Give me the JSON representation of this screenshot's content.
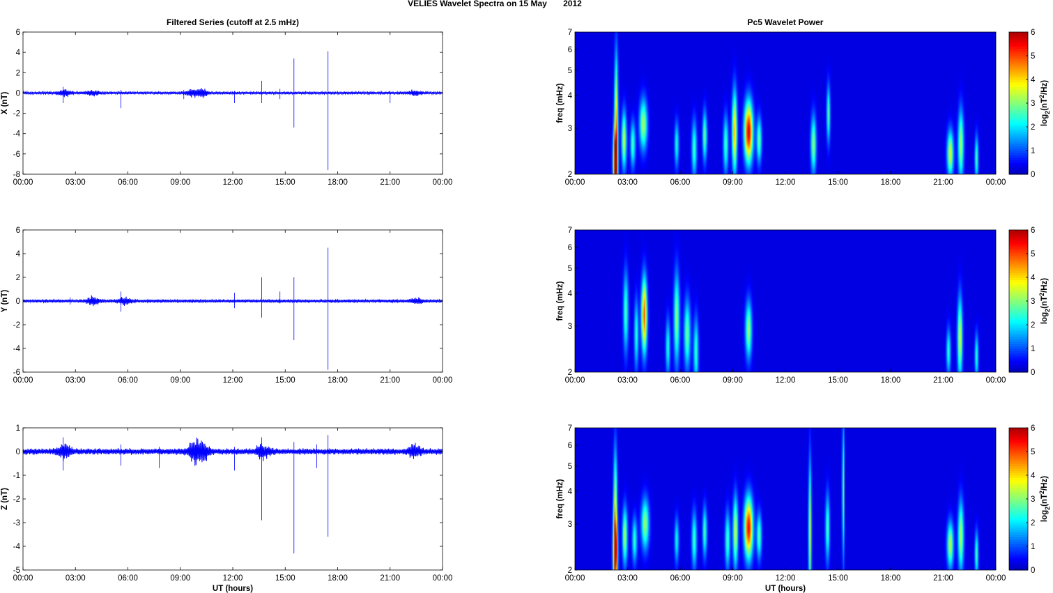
{
  "figure": {
    "suptitle": "VELIES Wavelet Spectra on 15 May       2012",
    "left_column_title": "Filtered Series (cutoff at 2.5 mHz)",
    "right_column_title": "Pc5 Wavelet Power",
    "colorbar_label_base": "log",
    "colorbar_label_sub": "2",
    "colorbar_label_mid": "(nT",
    "colorbar_label_sup": "2",
    "colorbar_label_end": "/Hz)"
  },
  "colors": {
    "series_line": "#0000ff",
    "background_power": "#00008f",
    "axes": "#000000"
  },
  "chart_data": [
    {
      "type": "line",
      "component": "X",
      "ylabel": "X (nT)",
      "xlabel": "",
      "xticks": [
        "00:00",
        "03:00",
        "06:00",
        "09:00",
        "12:00",
        "15:00",
        "18:00",
        "21:00",
        "00:00"
      ],
      "xlim_hours": [
        0,
        24
      ],
      "ylim": [
        -8,
        6
      ],
      "yticks": [
        -8,
        -6,
        -4,
        -2,
        0,
        2,
        4,
        6
      ],
      "baseline_amplitude": 0.12,
      "wave_packets": [
        {
          "center_hours": 2.4,
          "amplitude": 0.3
        },
        {
          "center_hours": 4.0,
          "amplitude": 0.2
        },
        {
          "center_hours": 9.6,
          "amplitude": 0.25
        },
        {
          "center_hours": 10.2,
          "amplitude": 0.35
        },
        {
          "center_hours": 22.4,
          "amplitude": 0.2
        }
      ],
      "spikes": [
        {
          "t_hours": 2.3,
          "min": -1.0,
          "max": 0.6
        },
        {
          "t_hours": 5.6,
          "min": -1.5,
          "max": 0.3
        },
        {
          "t_hours": 9.2,
          "min": -0.6,
          "max": 0.3
        },
        {
          "t_hours": 12.1,
          "min": -1.0,
          "max": 0.2
        },
        {
          "t_hours": 13.65,
          "min": -1.0,
          "max": 1.2
        },
        {
          "t_hours": 14.7,
          "min": -0.6,
          "max": 0.4
        },
        {
          "t_hours": 15.5,
          "min": -3.4,
          "max": 3.4
        },
        {
          "t_hours": 17.45,
          "min": -7.6,
          "max": 4.1
        },
        {
          "t_hours": 21.0,
          "min": -1.0,
          "max": 0.2
        }
      ]
    },
    {
      "type": "line",
      "component": "Y",
      "ylabel": "Y (nT)",
      "xlabel": "",
      "xticks": [
        "00:00",
        "03:00",
        "06:00",
        "09:00",
        "12:00",
        "15:00",
        "18:00",
        "21:00",
        "00:00"
      ],
      "xlim_hours": [
        0,
        24
      ],
      "ylim": [
        -6,
        6
      ],
      "yticks": [
        -6,
        -4,
        -2,
        0,
        2,
        4,
        6
      ],
      "baseline_amplitude": 0.12,
      "wave_packets": [
        {
          "center_hours": 4.0,
          "amplitude": 0.3
        },
        {
          "center_hours": 5.8,
          "amplitude": 0.25
        },
        {
          "center_hours": 22.5,
          "amplitude": 0.2
        }
      ],
      "spikes": [
        {
          "t_hours": 2.7,
          "min": -0.3,
          "max": 0.3
        },
        {
          "t_hours": 5.6,
          "min": -0.9,
          "max": 0.8
        },
        {
          "t_hours": 12.1,
          "min": -0.6,
          "max": 0.7
        },
        {
          "t_hours": 13.65,
          "min": -1.4,
          "max": 2.0
        },
        {
          "t_hours": 14.7,
          "min": -0.2,
          "max": 0.8
        },
        {
          "t_hours": 15.5,
          "min": -3.3,
          "max": 2.0
        },
        {
          "t_hours": 17.45,
          "min": -5.8,
          "max": 4.5
        }
      ]
    },
    {
      "type": "line",
      "component": "Z",
      "ylabel": "Z (nT)",
      "xlabel": "UT (hours)",
      "xticks": [
        "00:00",
        "03:00",
        "06:00",
        "09:00",
        "12:00",
        "15:00",
        "18:00",
        "21:00",
        "00:00"
      ],
      "xlim_hours": [
        0,
        24
      ],
      "ylim": [
        -5,
        1
      ],
      "yticks": [
        -5,
        -4,
        -3,
        -2,
        -1,
        0,
        1
      ],
      "baseline_amplitude": 0.12,
      "wave_packets": [
        {
          "center_hours": 2.4,
          "amplitude": 0.3
        },
        {
          "center_hours": 9.8,
          "amplitude": 0.35
        },
        {
          "center_hours": 10.3,
          "amplitude": 0.3
        },
        {
          "center_hours": 13.7,
          "amplitude": 0.25
        },
        {
          "center_hours": 22.4,
          "amplitude": 0.2
        }
      ],
      "spikes": [
        {
          "t_hours": 2.3,
          "min": -0.8,
          "max": 0.6
        },
        {
          "t_hours": 5.6,
          "min": -0.6,
          "max": 0.3
        },
        {
          "t_hours": 7.8,
          "min": -0.7,
          "max": 0.2
        },
        {
          "t_hours": 12.1,
          "min": -0.8,
          "max": 0.2
        },
        {
          "t_hours": 13.65,
          "min": -2.9,
          "max": 0.6
        },
        {
          "t_hours": 15.5,
          "min": -4.3,
          "max": 0.4
        },
        {
          "t_hours": 16.8,
          "min": -0.7,
          "max": 0.3
        },
        {
          "t_hours": 17.45,
          "min": -3.6,
          "max": 0.7
        }
      ]
    },
    {
      "type": "heatmap",
      "component": "X",
      "ylabel": "freq (mHz)",
      "xlabel": "",
      "xticks": [
        "00:00",
        "03:00",
        "06:00",
        "09:00",
        "12:00",
        "15:00",
        "18:00",
        "21:00",
        "00:00"
      ],
      "xlim_hours": [
        0,
        24
      ],
      "ylim_mHz": [
        2,
        7
      ],
      "yscale": "log",
      "yticks": [
        2,
        3,
        4,
        5,
        6,
        7
      ],
      "colorbar_ticks": [
        0,
        1,
        2,
        3,
        4,
        5,
        6
      ],
      "clim": [
        0,
        6
      ],
      "blobs": [
        {
          "t": 2.3,
          "f": 2.2,
          "peak": 5.6,
          "dt": 0.12,
          "df": 0.28
        },
        {
          "t": 2.35,
          "f": 3.3,
          "peak": 3.6,
          "dt": 0.1,
          "df": 0.55
        },
        {
          "t": 2.8,
          "f": 2.7,
          "peak": 3.2,
          "dt": 0.14,
          "df": 0.25
        },
        {
          "t": 3.3,
          "f": 2.6,
          "peak": 2.4,
          "dt": 0.14,
          "df": 0.2
        },
        {
          "t": 3.9,
          "f": 3.1,
          "peak": 3.0,
          "dt": 0.22,
          "df": 0.22
        },
        {
          "t": 5.8,
          "f": 2.6,
          "peak": 2.1,
          "dt": 0.12,
          "df": 0.2
        },
        {
          "t": 6.8,
          "f": 2.5,
          "peak": 2.3,
          "dt": 0.14,
          "df": 0.25
        },
        {
          "t": 7.4,
          "f": 2.8,
          "peak": 2.6,
          "dt": 0.12,
          "df": 0.22
        },
        {
          "t": 8.6,
          "f": 2.6,
          "peak": 2.4,
          "dt": 0.14,
          "df": 0.25
        },
        {
          "t": 9.1,
          "f": 2.9,
          "peak": 4.0,
          "dt": 0.14,
          "df": 0.35
        },
        {
          "t": 9.9,
          "f": 2.9,
          "peak": 5.5,
          "dt": 0.24,
          "df": 0.26
        },
        {
          "t": 10.5,
          "f": 2.7,
          "peak": 2.6,
          "dt": 0.14,
          "df": 0.2
        },
        {
          "t": 13.6,
          "f": 2.6,
          "peak": 2.8,
          "dt": 0.15,
          "df": 0.25
        },
        {
          "t": 14.45,
          "f": 3.4,
          "peak": 2.5,
          "dt": 0.1,
          "df": 0.25
        },
        {
          "t": 21.4,
          "f": 2.4,
          "peak": 3.3,
          "dt": 0.18,
          "df": 0.2
        },
        {
          "t": 22.0,
          "f": 2.6,
          "peak": 3.0,
          "dt": 0.16,
          "df": 0.3
        },
        {
          "t": 22.9,
          "f": 2.3,
          "peak": 2.4,
          "dt": 0.1,
          "df": 0.2
        }
      ]
    },
    {
      "type": "heatmap",
      "component": "Y",
      "ylabel": "freq (mHz)",
      "xlabel": "",
      "xticks": [
        "00:00",
        "03:00",
        "06:00",
        "09:00",
        "12:00",
        "15:00",
        "18:00",
        "21:00",
        "00:00"
      ],
      "xlim_hours": [
        0,
        24
      ],
      "ylim_mHz": [
        2,
        7
      ],
      "yscale": "log",
      "yticks": [
        2,
        3,
        4,
        5,
        6,
        7
      ],
      "colorbar_ticks": [
        0,
        1,
        2,
        3,
        4,
        5,
        6
      ],
      "clim": [
        0,
        6
      ],
      "blobs": [
        {
          "t": 2.9,
          "f": 3.4,
          "peak": 2.4,
          "dt": 0.14,
          "df": 0.35
        },
        {
          "t": 3.5,
          "f": 2.8,
          "peak": 2.2,
          "dt": 0.12,
          "df": 0.3
        },
        {
          "t": 3.95,
          "f": 3.3,
          "peak": 4.7,
          "dt": 0.16,
          "df": 0.32
        },
        {
          "t": 5.3,
          "f": 2.5,
          "peak": 2.1,
          "dt": 0.12,
          "df": 0.25
        },
        {
          "t": 5.8,
          "f": 3.2,
          "peak": 2.8,
          "dt": 0.16,
          "df": 0.4
        },
        {
          "t": 6.4,
          "f": 2.8,
          "peak": 2.6,
          "dt": 0.18,
          "df": 0.3
        },
        {
          "t": 6.9,
          "f": 2.4,
          "peak": 2.2,
          "dt": 0.14,
          "df": 0.3
        },
        {
          "t": 9.9,
          "f": 2.9,
          "peak": 2.9,
          "dt": 0.18,
          "df": 0.25
        },
        {
          "t": 21.3,
          "f": 2.4,
          "peak": 2.2,
          "dt": 0.12,
          "df": 0.2
        },
        {
          "t": 21.95,
          "f": 2.7,
          "peak": 3.3,
          "dt": 0.14,
          "df": 0.35
        },
        {
          "t": 22.9,
          "f": 2.3,
          "peak": 2.2,
          "dt": 0.1,
          "df": 0.2
        }
      ]
    },
    {
      "type": "heatmap",
      "component": "Z",
      "ylabel": "freq (mHz)",
      "xlabel": "UT (hours)",
      "xticks": [
        "00:00",
        "03:00",
        "06:00",
        "09:00",
        "12:00",
        "15:00",
        "18:00",
        "21:00",
        "00:00"
      ],
      "xlim_hours": [
        0,
        24
      ],
      "ylim_mHz": [
        2,
        7
      ],
      "yscale": "log",
      "yticks": [
        2,
        3,
        4,
        5,
        6,
        7
      ],
      "colorbar_ticks": [
        0,
        1,
        2,
        3,
        4,
        5,
        6
      ],
      "clim": [
        0,
        6
      ],
      "blobs": [
        {
          "t": 2.3,
          "f": 2.3,
          "peak": 5.5,
          "dt": 0.12,
          "df": 0.32
        },
        {
          "t": 2.3,
          "f": 3.6,
          "peak": 3.0,
          "dt": 0.1,
          "df": 0.5
        },
        {
          "t": 2.85,
          "f": 2.7,
          "peak": 3.0,
          "dt": 0.14,
          "df": 0.25
        },
        {
          "t": 3.4,
          "f": 2.6,
          "peak": 2.2,
          "dt": 0.14,
          "df": 0.2
        },
        {
          "t": 4.0,
          "f": 3.0,
          "peak": 2.9,
          "dt": 0.22,
          "df": 0.22
        },
        {
          "t": 5.8,
          "f": 2.6,
          "peak": 2.0,
          "dt": 0.12,
          "df": 0.2
        },
        {
          "t": 6.8,
          "f": 2.6,
          "peak": 2.3,
          "dt": 0.14,
          "df": 0.25
        },
        {
          "t": 7.4,
          "f": 2.8,
          "peak": 2.4,
          "dt": 0.12,
          "df": 0.22
        },
        {
          "t": 8.7,
          "f": 2.6,
          "peak": 2.4,
          "dt": 0.14,
          "df": 0.25
        },
        {
          "t": 9.15,
          "f": 2.8,
          "peak": 3.4,
          "dt": 0.14,
          "df": 0.3
        },
        {
          "t": 9.9,
          "f": 2.9,
          "peak": 5.3,
          "dt": 0.24,
          "df": 0.26
        },
        {
          "t": 10.5,
          "f": 2.7,
          "peak": 2.5,
          "dt": 0.14,
          "df": 0.2
        },
        {
          "t": 13.4,
          "f": 2.8,
          "peak": 3.4,
          "dt": 0.08,
          "df": 0.6
        },
        {
          "t": 14.4,
          "f": 2.9,
          "peak": 2.4,
          "dt": 0.12,
          "df": 0.3
        },
        {
          "t": 15.3,
          "f": 4.0,
          "peak": 2.8,
          "dt": 0.06,
          "df": 0.6
        },
        {
          "t": 21.4,
          "f": 2.5,
          "peak": 3.1,
          "dt": 0.18,
          "df": 0.2
        },
        {
          "t": 22.0,
          "f": 2.7,
          "peak": 3.1,
          "dt": 0.16,
          "df": 0.3
        },
        {
          "t": 22.9,
          "f": 2.3,
          "peak": 2.4,
          "dt": 0.1,
          "df": 0.2
        }
      ]
    }
  ]
}
